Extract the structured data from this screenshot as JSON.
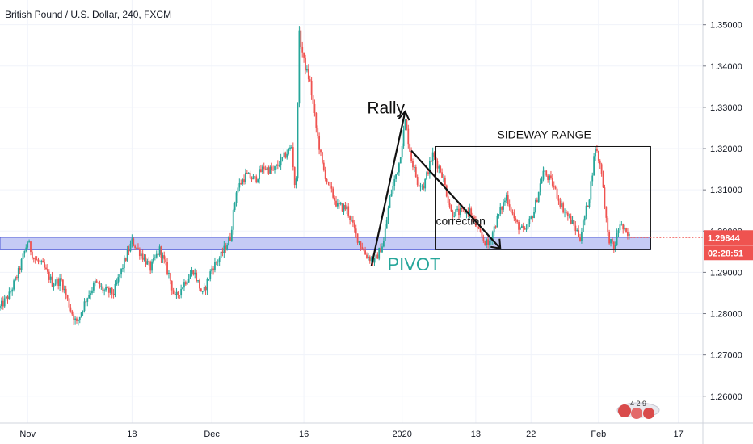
{
  "chart_data": {
    "type": "candlestick",
    "title": "British Pound / U.S. Dollar, 240, FXCM",
    "ylim": [
      1.2535,
      1.356
    ],
    "y_ticks": [
      {
        "value": 1.35,
        "label": "1.35000"
      },
      {
        "value": 1.34,
        "label": "1.34000"
      },
      {
        "value": 1.33,
        "label": "1.33000"
      },
      {
        "value": 1.32,
        "label": "1.32000"
      },
      {
        "value": 1.31,
        "label": "1.31000"
      },
      {
        "value": 1.3,
        "label": "1.30000"
      },
      {
        "value": 1.29,
        "label": "1.29000"
      },
      {
        "value": 1.28,
        "label": "1.28000"
      },
      {
        "value": 1.27,
        "label": "1.27000"
      },
      {
        "value": 1.26,
        "label": "1.26000"
      }
    ],
    "x_ticks": [
      {
        "day": 0,
        "label": "Nov"
      },
      {
        "day": 17,
        "label": "18"
      },
      {
        "day": 30,
        "label": "Dec"
      },
      {
        "day": 45,
        "label": "16"
      },
      {
        "day": 61,
        "label": "2020"
      },
      {
        "day": 73,
        "label": "13"
      },
      {
        "day": 82,
        "label": "22"
      },
      {
        "day": 93,
        "label": "Feb"
      },
      {
        "day": 106,
        "label": "17"
      }
    ],
    "xlim": [
      -4.5,
      110
    ],
    "grid": true,
    "price_path": [
      [
        -4.5,
        1.2815
      ],
      [
        -3,
        1.2845
      ],
      [
        -1.5,
        1.29
      ],
      [
        0,
        1.2975
      ],
      [
        1,
        1.2935
      ],
      [
        2.5,
        1.2915
      ],
      [
        4,
        1.2875
      ],
      [
        5.5,
        1.288
      ],
      [
        7,
        1.281
      ],
      [
        8,
        1.2775
      ],
      [
        9.5,
        1.2835
      ],
      [
        11,
        1.2875
      ],
      [
        12.5,
        1.2855
      ],
      [
        14,
        1.285
      ],
      [
        15.5,
        1.2915
      ],
      [
        17,
        1.2975
      ],
      [
        18.5,
        1.2945
      ],
      [
        20,
        1.291
      ],
      [
        21.5,
        1.2955
      ],
      [
        23,
        1.2895
      ],
      [
        24,
        1.2835
      ],
      [
        25.5,
        1.2875
      ],
      [
        27,
        1.2905
      ],
      [
        28.5,
        1.2845
      ],
      [
        30,
        1.291
      ],
      [
        31.5,
        1.294
      ],
      [
        33,
        1.2985
      ],
      [
        34,
        1.31
      ],
      [
        35.5,
        1.3135
      ],
      [
        37,
        1.3125
      ],
      [
        38.5,
        1.3155
      ],
      [
        40,
        1.3145
      ],
      [
        41.5,
        1.3175
      ],
      [
        43,
        1.3205
      ],
      [
        43.7,
        1.308
      ],
      [
        44.2,
        1.348
      ],
      [
        45,
        1.341
      ],
      [
        46,
        1.336
      ],
      [
        47,
        1.325
      ],
      [
        48,
        1.316
      ],
      [
        49,
        1.311
      ],
      [
        50.5,
        1.306
      ],
      [
        52,
        1.3055
      ],
      [
        53.5,
        1.299
      ],
      [
        55,
        1.2945
      ],
      [
        56.5,
        1.2925
      ],
      [
        58,
        1.2975
      ],
      [
        59,
        1.308
      ],
      [
        60.5,
        1.3165
      ],
      [
        61.5,
        1.3265
      ],
      [
        62.5,
        1.3175
      ],
      [
        63.5,
        1.312
      ],
      [
        64.5,
        1.311
      ],
      [
        66,
        1.3185
      ],
      [
        67.5,
        1.314
      ],
      [
        69,
        1.3045
      ],
      [
        70.5,
        1.3045
      ],
      [
        72,
        1.305
      ],
      [
        73.5,
        1.2995
      ],
      [
        75,
        1.2965
      ],
      [
        76.5,
        1.303
      ],
      [
        78,
        1.3085
      ],
      [
        79.5,
        1.302
      ],
      [
        81,
        1.2995
      ],
      [
        82.5,
        1.305
      ],
      [
        84,
        1.3145
      ],
      [
        85.5,
        1.3115
      ],
      [
        87,
        1.306
      ],
      [
        88.5,
        1.3025
      ],
      [
        90,
        1.2985
      ],
      [
        91.5,
        1.3085
      ],
      [
        92.5,
        1.3205
      ],
      [
        93.5,
        1.3145
      ],
      [
        94.5,
        1.299
      ],
      [
        95.5,
        1.2955
      ],
      [
        96.5,
        1.302
      ],
      [
        97.5,
        1.299
      ],
      [
        98.2,
        1.2984
      ]
    ],
    "current_price": {
      "value": 1.29844,
      "label": "1.29844"
    },
    "countdown": "02:28:51",
    "pivot_zone": {
      "day_start": -4.5,
      "day_end": 101.5,
      "y_low": 1.2955,
      "y_high": 1.2985
    },
    "range_box": {
      "day_start": 66.5,
      "day_end": 101.5,
      "y_low": 1.2955,
      "y_high": 1.3205
    },
    "rally_line": [
      [
        56,
        1.2915
      ],
      [
        61.5,
        1.329
      ]
    ],
    "correction_arrow": [
      [
        62.5,
        1.3195
      ],
      [
        77,
        1.2958
      ]
    ],
    "annotations": {
      "rally": "Rally",
      "sideway": "SIDEWAY RANGE",
      "correction": "correction",
      "pivot": "PIVOT"
    },
    "colors": {
      "up": "#26a69a",
      "down": "#ef5350",
      "pivot_fill": "#c5cbf5",
      "pivot_stroke": "#4a57d6",
      "price_label": "#ef5350",
      "grid": "#f0f3fa"
    }
  },
  "logo": {
    "badge": "4 2 9"
  }
}
